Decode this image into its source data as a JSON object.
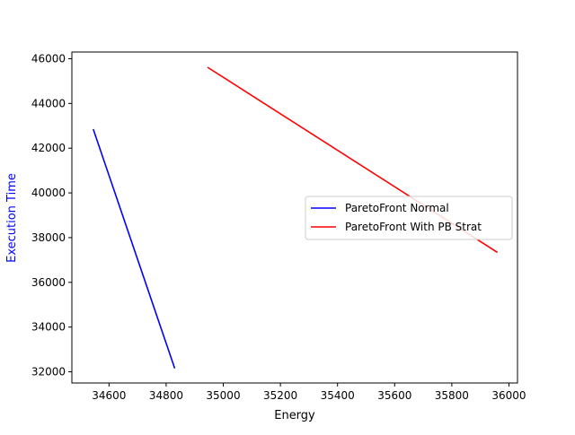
{
  "chart_data": {
    "type": "line",
    "xlabel": "Energy",
    "ylabel": "Execution Time",
    "ylabel_color": "#0000ff",
    "xlim": [
      34470,
      36030
    ],
    "ylim": [
      31500,
      46300
    ],
    "xticks": [
      34600,
      34800,
      35000,
      35200,
      35400,
      35600,
      35800,
      36000
    ],
    "xtick_labels": [
      "34600",
      "34800",
      "35000",
      "35200",
      "35400",
      "35600",
      "35800",
      "36000"
    ],
    "yticks": [
      32000,
      34000,
      36000,
      38000,
      40000,
      42000,
      44000,
      46000
    ],
    "ytick_labels": [
      "32000",
      "34000",
      "36000",
      "38000",
      "40000",
      "42000",
      "44000",
      "46000"
    ],
    "legend_position": "center-right",
    "grid": false,
    "series": [
      {
        "name": "ParetoFront Normal",
        "color": "#0000ff",
        "x": [
          34545,
          34830
        ],
        "y": [
          42850,
          32150
        ]
      },
      {
        "name": "ParetoFront With PB Strat",
        "color": "#ff0000",
        "x": [
          34945,
          35960
        ],
        "y": [
          45620,
          37340
        ]
      }
    ]
  }
}
